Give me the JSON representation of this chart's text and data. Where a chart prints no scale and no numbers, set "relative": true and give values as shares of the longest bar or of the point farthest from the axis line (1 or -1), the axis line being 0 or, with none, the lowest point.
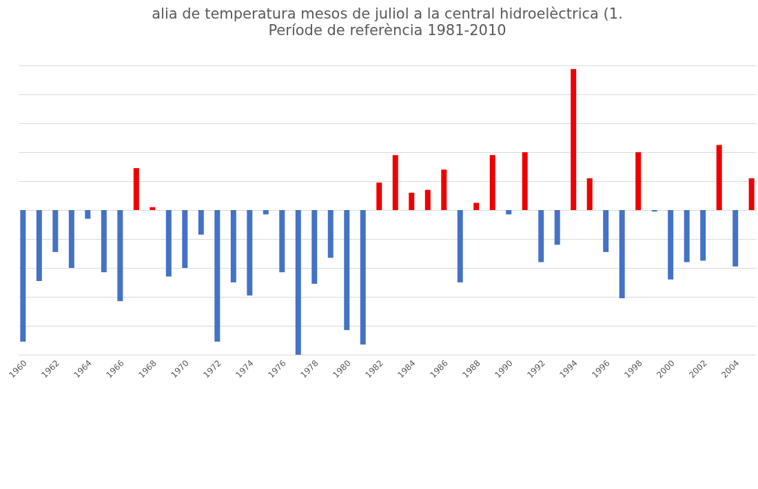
{
  "chart_data": {
    "type": "bar",
    "title": "alia de temperatura mesos de juliol a la central hidroelèctrica (1.",
    "subtitle": "Període de referència 1981-2010",
    "relative": true,
    "grid": "y",
    "categories": [
      "1960",
      null,
      "1962",
      null,
      "1964",
      null,
      "1966",
      null,
      "1968",
      null,
      "1970",
      null,
      "1972",
      null,
      "1974",
      null,
      "1976",
      null,
      "1978",
      null,
      "1980",
      null,
      "1982",
      null,
      "1984",
      null,
      "1986",
      null,
      "1988",
      null,
      "1990",
      null,
      "1992",
      null,
      "1994",
      null,
      "1996",
      null,
      "1998",
      null,
      "2000",
      null,
      "2002",
      null,
      "2004",
      null
    ],
    "values": [
      -0.91,
      -0.49,
      -0.29,
      -0.4,
      -0.06,
      -0.43,
      -0.63,
      0.29,
      0.02,
      -0.46,
      -0.4,
      -0.17,
      -0.91,
      -0.5,
      -0.59,
      -0.03,
      -0.43,
      -1,
      -0.51,
      -0.33,
      -0.83,
      -0.93,
      0.19,
      0.38,
      0.12,
      0.14,
      0.28,
      -0.5,
      0.05,
      0.38,
      -0.03,
      0.4,
      -0.36,
      -0.24,
      0.975,
      0.22,
      -0.29,
      -0.61,
      0.4,
      -0.01,
      -0.48,
      -0.36,
      -0.35,
      0.45,
      -0.39,
      0.22
    ],
    "colors": [
      "#4472c4",
      "#4472c4",
      "#4472c4",
      "#4472c4",
      "#4472c4",
      "#4472c4",
      "#4472c4",
      "#ee0000",
      "#ee0000",
      "#4472c4",
      "#4472c4",
      "#4472c4",
      "#4472c4",
      "#4472c4",
      "#4472c4",
      "#4472c4",
      "#4472c4",
      "#4472c4",
      "#4472c4",
      "#4472c4",
      "#4472c4",
      "#4472c4",
      "#ee0000",
      "#ee0000",
      "#ee0000",
      "#ee0000",
      "#ee0000",
      "#4472c4",
      "#ee0000",
      "#ee0000",
      "#4472c4",
      "#ee0000",
      "#4472c4",
      "#4472c4",
      "#ee0000",
      "#ee0000",
      "#4472c4",
      "#4472c4",
      "#ee0000",
      "#4472c4",
      "#4472c4",
      "#4472c4",
      "#4472c4",
      "#ee0000",
      "#4472c4",
      "#ee0000"
    ]
  }
}
